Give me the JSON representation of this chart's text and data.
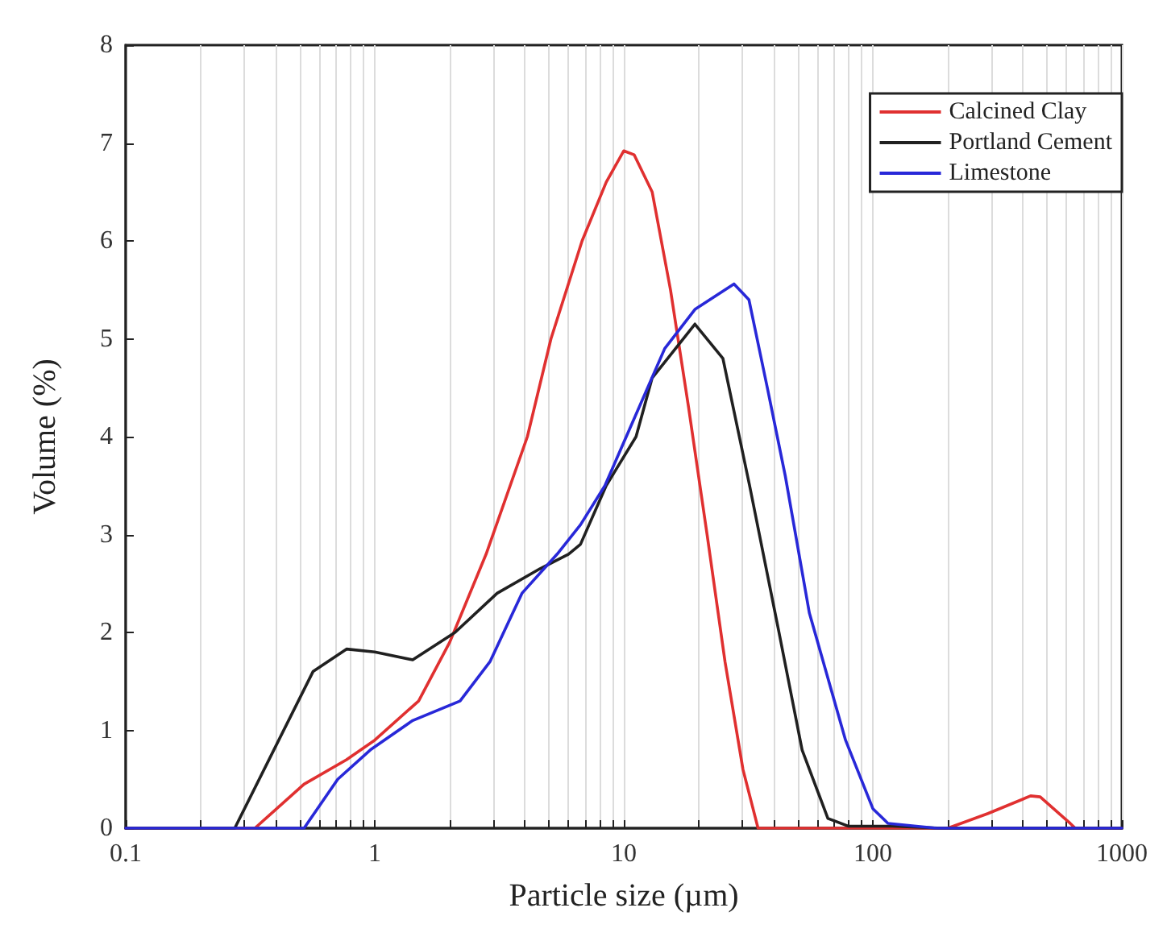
{
  "chart_data": {
    "type": "line",
    "xlabel": "Particle size (µm)",
    "ylabel": "Volume (%)",
    "log": "x",
    "grid": "x",
    "legend": "top right",
    "marker": "none",
    "line_style": "solid",
    "xlim": [
      0.1,
      1000
    ],
    "xticks": [
      0.1,
      {
        "value": 0.2,
        "label": null
      },
      {
        "value": 0.3,
        "label": null
      },
      {
        "value": 0.4,
        "label": null
      },
      {
        "value": 0.5,
        "label": null
      },
      {
        "value": 0.6,
        "label": null
      },
      {
        "value": 0.7,
        "label": null
      },
      {
        "value": 0.8,
        "label": null
      },
      {
        "value": 0.9,
        "label": null
      },
      1,
      {
        "value": 2,
        "label": null
      },
      {
        "value": 3,
        "label": null
      },
      {
        "value": 4,
        "label": null
      },
      {
        "value": 5,
        "label": null
      },
      {
        "value": 6,
        "label": null
      },
      {
        "value": 7,
        "label": null
      },
      {
        "value": 8,
        "label": null
      },
      {
        "value": 9,
        "label": null
      },
      10,
      {
        "value": 20,
        "label": null
      },
      {
        "value": 30,
        "label": null
      },
      {
        "value": 40,
        "label": null
      },
      {
        "value": 50,
        "label": null
      },
      {
        "value": 60,
        "label": null
      },
      {
        "value": 70,
        "label": null
      },
      {
        "value": 80,
        "label": null
      },
      {
        "value": 90,
        "label": null
      },
      100,
      {
        "value": 200,
        "label": null
      },
      {
        "value": 300,
        "label": null
      },
      {
        "value": 400,
        "label": null
      },
      {
        "value": 500,
        "label": null
      },
      {
        "value": 600,
        "label": null
      },
      {
        "value": 700,
        "label": null
      },
      {
        "value": 800,
        "label": null
      },
      {
        "value": 900,
        "label": null
      },
      1000
    ],
    "ylim": [
      0,
      8
    ],
    "yticks": [
      0,
      1,
      2,
      3,
      4,
      5,
      6,
      7,
      8
    ],
    "series": [
      {
        "name": "Calcined Clay",
        "color": "#e03030",
        "x": [
          0.1,
          0.33,
          0.52,
          0.77,
          1,
          1.5,
          2,
          2.8,
          4.1,
          5.1,
          6.8,
          8.5,
          10,
          11,
          13,
          15.4,
          18.2,
          21.6,
          25.5,
          30.1,
          34.6,
          200,
          290,
          430,
          470,
          620,
          650,
          1000
        ],
        "values": [
          0,
          0,
          0.45,
          0.7,
          0.9,
          1.3,
          1.9,
          2.8,
          4,
          5,
          6,
          6.6,
          6.92,
          6.88,
          6.5,
          5.5,
          4.3,
          3,
          1.7,
          0.6,
          0,
          0,
          0.15,
          0.33,
          0.32,
          0.05,
          0,
          0
        ]
      },
      {
        "name": "Portland Cement",
        "color": "#202020",
        "x": [
          0.1,
          0.274,
          0.565,
          0.77,
          1,
          1.42,
          2.1,
          3.1,
          4.6,
          6,
          6.7,
          8.5,
          11.2,
          13,
          19.3,
          25,
          32,
          42,
          52,
          66,
          80,
          120,
          190,
          1000
        ],
        "values": [
          0,
          0,
          1.6,
          1.83,
          1.8,
          1.72,
          2,
          2.4,
          2.65,
          2.8,
          2.9,
          3.5,
          4,
          4.6,
          5.15,
          4.8,
          3.5,
          2,
          0.8,
          0.1,
          0.02,
          0.02,
          0,
          0
        ]
      },
      {
        "name": "Limestone",
        "color": "#2828d8",
        "x": [
          0.1,
          0.52,
          0.71,
          0.96,
          1.42,
          2.2,
          2.9,
          3.9,
          5.4,
          6.7,
          8.4,
          14.6,
          19.3,
          27.7,
          31.8,
          37.7,
          44.5,
          55.6,
          77.7,
          100,
          115,
          180,
          1000
        ],
        "values": [
          0,
          0,
          0.5,
          0.8,
          1.1,
          1.3,
          1.7,
          2.4,
          2.8,
          3.1,
          3.5,
          4.9,
          5.3,
          5.56,
          5.4,
          4.5,
          3.6,
          2.2,
          0.9,
          0.2,
          0.05,
          0,
          0
        ]
      }
    ]
  }
}
